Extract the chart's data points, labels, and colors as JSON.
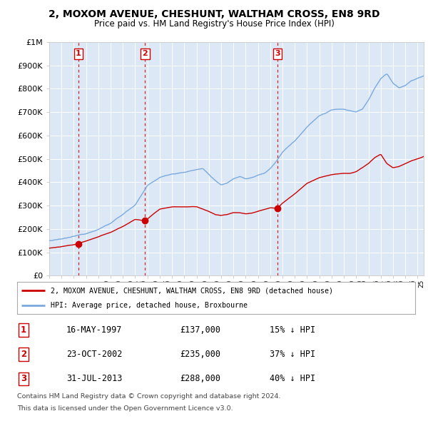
{
  "title": "2, MOXOM AVENUE, CHESHUNT, WALTHAM CROSS, EN8 9RD",
  "subtitle": "Price paid vs. HM Land Registry's House Price Index (HPI)",
  "sale_year_floats": [
    1997.37,
    2002.81,
    2013.58
  ],
  "sale_prices": [
    137000,
    235000,
    288000
  ],
  "sale_labels": [
    "1",
    "2",
    "3"
  ],
  "sale_label_info": [
    {
      "label": "1",
      "date": "16-MAY-1997",
      "price": "£137,000",
      "pct": "15% ↓ HPI"
    },
    {
      "label": "2",
      "date": "23-OCT-2002",
      "price": "£235,000",
      "pct": "37% ↓ HPI"
    },
    {
      "label": "3",
      "date": "31-JUL-2013",
      "price": "£288,000",
      "pct": "40% ↓ HPI"
    }
  ],
  "hpi_color": "#7aaadd",
  "sale_color": "#cc0000",
  "dashed_color": "#cc0000",
  "plot_bg_color": "#dce8f5",
  "ylabel_values": [
    0,
    100000,
    200000,
    300000,
    400000,
    500000,
    600000,
    700000,
    800000,
    900000,
    1000000
  ],
  "ylabel_labels": [
    "£0",
    "£100K",
    "£200K",
    "£300K",
    "£400K",
    "£500K",
    "£600K",
    "£700K",
    "£800K",
    "£900K",
    "£1M"
  ],
  "xmin": 1995.0,
  "xmax": 2025.5,
  "ymin": 0,
  "ymax": 1000000,
  "legend_line1": "2, MOXOM AVENUE, CHESHUNT, WALTHAM CROSS, EN8 9RD (detached house)",
  "legend_line2": "HPI: Average price, detached house, Broxbourne",
  "footnote1": "Contains HM Land Registry data © Crown copyright and database right 2024.",
  "footnote2": "This data is licensed under the Open Government Licence v3.0."
}
